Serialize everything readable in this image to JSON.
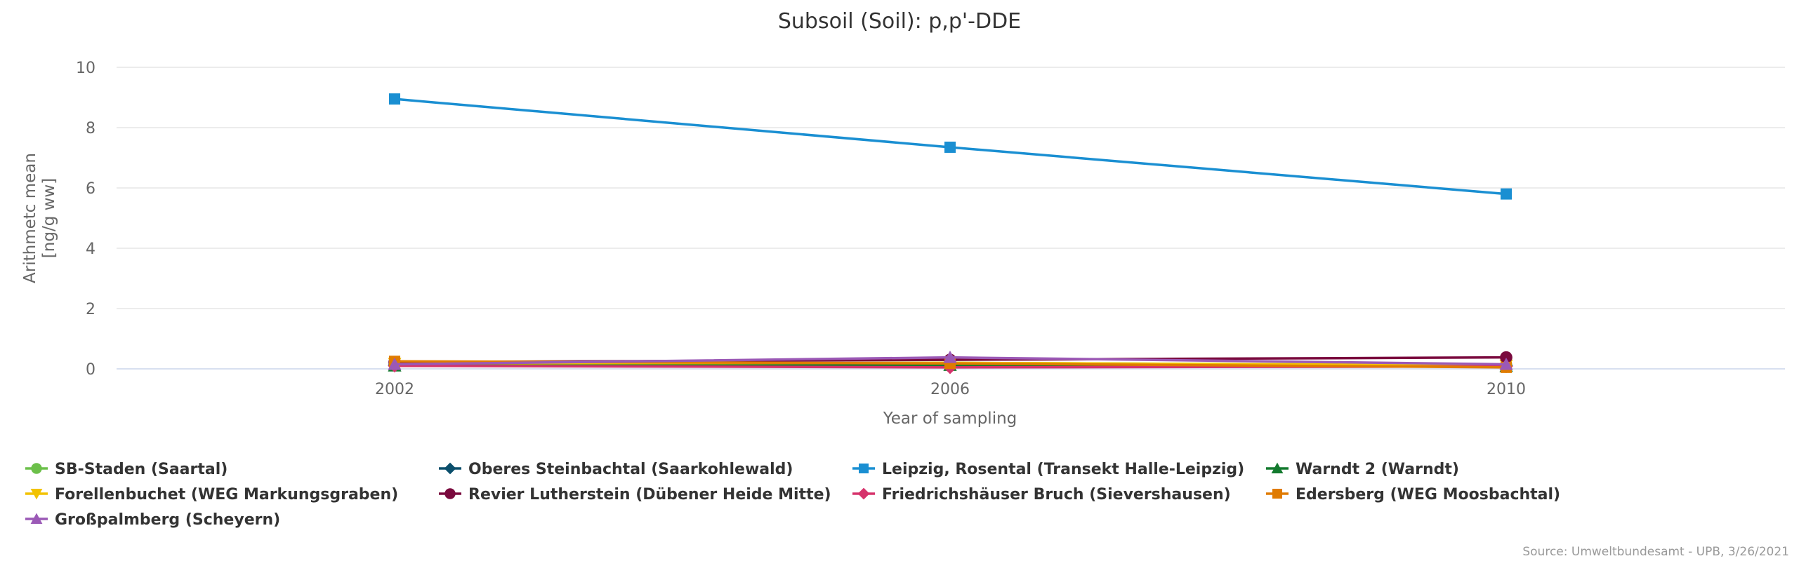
{
  "chart_data": {
    "type": "line",
    "title": "Subsoil (Soil): p,p'-DDE",
    "xlabel": "Year of sampling",
    "ylabel": [
      "Arithmetc mean",
      "[ng/g ww]"
    ],
    "categories": [
      "2002",
      "2006",
      "2010"
    ],
    "ylim": [
      0,
      10
    ],
    "yticks": [
      0,
      2,
      4,
      6,
      8,
      10
    ],
    "grid": true,
    "legend_position": "bottom",
    "series": [
      {
        "name": "SB-Staden (Saartal)",
        "color": "#6cc04a",
        "marker": "circle",
        "values": [
          0.15,
          0.2,
          0.12
        ]
      },
      {
        "name": "Oberes Steinbachtal (Saarkohlewald)",
        "color": "#0b4f6c",
        "marker": "diamond",
        "values": [
          0.12,
          0.15,
          0.1
        ]
      },
      {
        "name": "Leipzig, Rosental (Transekt Halle-Leipzig)",
        "color": "#1a8fd2",
        "marker": "square",
        "values": [
          8.95,
          7.35,
          5.8
        ]
      },
      {
        "name": "Warndt 2 (Warndt)",
        "color": "#137a2e",
        "marker": "triangle",
        "values": [
          0.1,
          0.12,
          0.08
        ]
      },
      {
        "name": "Forellenbuchet (WEG Markungsgraben)",
        "color": "#f2c200",
        "marker": "triangle-down",
        "values": [
          0.18,
          0.2,
          0.12
        ]
      },
      {
        "name": "Revier Lutherstein (Dübener Heide Mitte)",
        "color": "#7a0a3e",
        "marker": "circle",
        "values": [
          0.22,
          0.3,
          0.38
        ]
      },
      {
        "name": "Friedrichshäuser Bruch (Sievershausen)",
        "color": "#d6336c",
        "marker": "diamond",
        "values": [
          0.1,
          0.05,
          0.08
        ]
      },
      {
        "name": "Edersberg (WEG Moosbachtal)",
        "color": "#e07b00",
        "marker": "square",
        "values": [
          0.25,
          0.18,
          0.05
        ]
      },
      {
        "name": "Großpalmberg (Scheyern)",
        "color": "#9b59b6",
        "marker": "triangle",
        "values": [
          0.15,
          0.38,
          0.15
        ]
      }
    ]
  },
  "credits": "Source: Umweltbundesamt - UPB, 3/26/2021"
}
